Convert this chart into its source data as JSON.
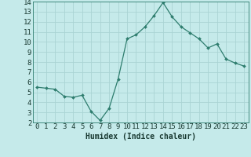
{
  "x": [
    0,
    1,
    2,
    3,
    4,
    5,
    6,
    7,
    8,
    9,
    10,
    11,
    12,
    13,
    14,
    15,
    16,
    17,
    18,
    19,
    20,
    21,
    22,
    23
  ],
  "y": [
    5.5,
    5.4,
    5.3,
    4.6,
    4.5,
    4.7,
    3.1,
    2.2,
    3.4,
    6.3,
    10.3,
    10.7,
    11.5,
    12.6,
    13.9,
    12.5,
    11.5,
    10.9,
    10.3,
    9.4,
    9.8,
    8.3,
    7.9,
    7.6
  ],
  "line_color": "#2e7d6e",
  "marker": "D",
  "marker_size": 2.0,
  "bg_color": "#c5eaea",
  "grid_color": "#aad4d4",
  "xlabel": "Humidex (Indice chaleur)",
  "xlim": [
    -0.5,
    23.5
  ],
  "ylim": [
    2,
    14
  ],
  "xticks": [
    0,
    1,
    2,
    3,
    4,
    5,
    6,
    7,
    8,
    9,
    10,
    11,
    12,
    13,
    14,
    15,
    16,
    17,
    18,
    19,
    20,
    21,
    22,
    23
  ],
  "yticks": [
    2,
    3,
    4,
    5,
    6,
    7,
    8,
    9,
    10,
    11,
    12,
    13,
    14
  ],
  "xlabel_fontsize": 7,
  "tick_fontsize": 6.5
}
